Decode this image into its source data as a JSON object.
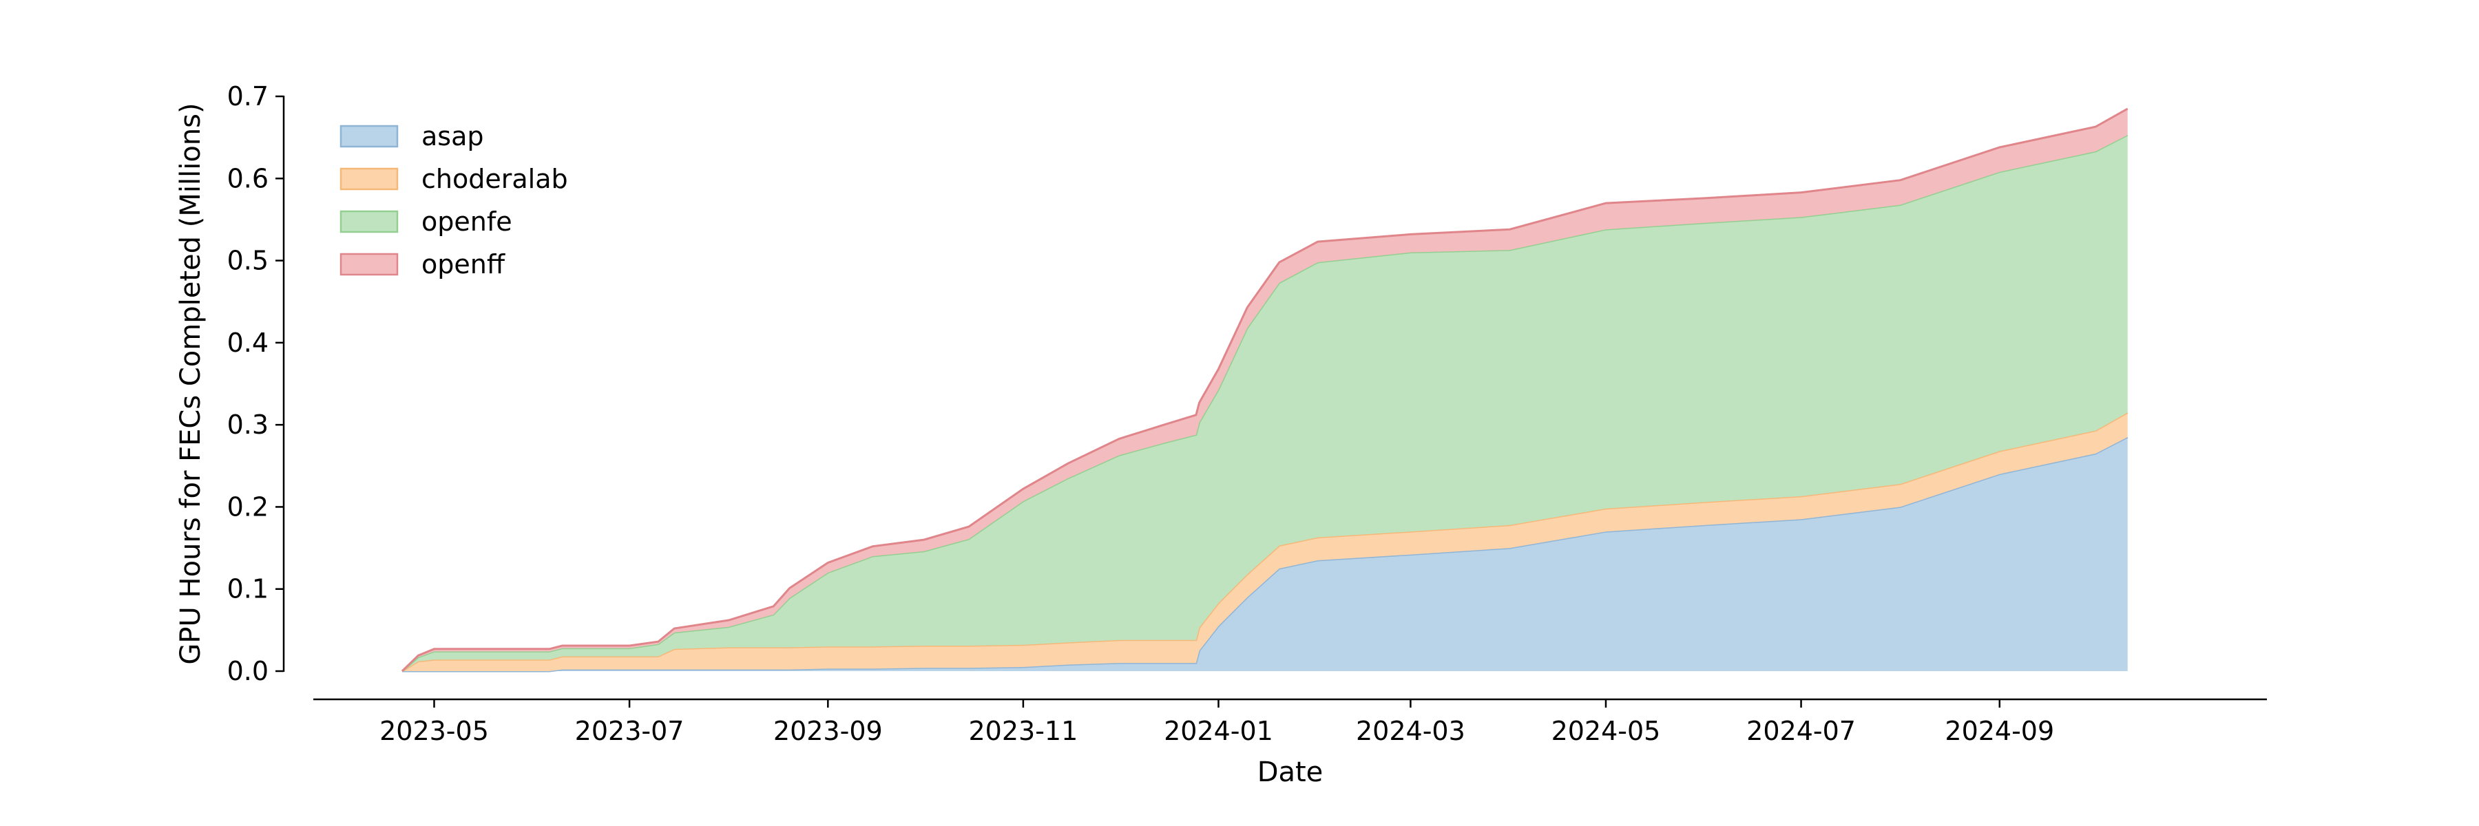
{
  "chart_data": {
    "type": "area",
    "stacked": true,
    "xlabel": "Date",
    "ylabel": "GPU Hours for FECs Completed (Millions)",
    "ylim": [
      0.0,
      0.7
    ],
    "xlim": [
      "2023-03-15",
      "2024-11-22"
    ],
    "y_ticks": [
      0.0,
      0.1,
      0.2,
      0.3,
      0.4,
      0.5,
      0.6,
      0.7
    ],
    "y_tick_labels": [
      "0.0",
      "0.1",
      "0.2",
      "0.3",
      "0.4",
      "0.5",
      "0.6",
      "0.7"
    ],
    "x_ticks": [
      "2023-05-01",
      "2023-07-01",
      "2023-09-01",
      "2023-11-01",
      "2024-01-01",
      "2024-03-01",
      "2024-05-01",
      "2024-07-01",
      "2024-09-01"
    ],
    "x_tick_labels": [
      "2023-05",
      "2023-07",
      "2023-09",
      "2023-11",
      "2024-01",
      "2024-03",
      "2024-05",
      "2024-07",
      "2024-09"
    ],
    "legend_position": "upper-left",
    "grid": false,
    "x": [
      "2023-04-21",
      "2023-04-26",
      "2023-05-01",
      "2023-06-06",
      "2023-06-10",
      "2023-07-01",
      "2023-07-10",
      "2023-07-15",
      "2023-08-01",
      "2023-08-15",
      "2023-08-20",
      "2023-09-01",
      "2023-09-15",
      "2023-10-01",
      "2023-10-15",
      "2023-11-01",
      "2023-11-15",
      "2023-12-01",
      "2023-12-15",
      "2023-12-25",
      "2023-12-26",
      "2024-01-01",
      "2024-01-10",
      "2024-01-20",
      "2024-02-01",
      "2024-03-01",
      "2024-04-01",
      "2024-05-01",
      "2024-06-01",
      "2024-07-01",
      "2024-08-01",
      "2024-09-01",
      "2024-10-01",
      "2024-10-11"
    ],
    "series": [
      {
        "name": "asap",
        "values": [
          0.0,
          0.0,
          0.0,
          0.0,
          0.002,
          0.002,
          0.002,
          0.002,
          0.002,
          0.002,
          0.002,
          0.003,
          0.003,
          0.004,
          0.004,
          0.005,
          0.008,
          0.01,
          0.01,
          0.01,
          0.025,
          0.055,
          0.09,
          0.125,
          0.135,
          0.142,
          0.15,
          0.17,
          0.178,
          0.185,
          0.2,
          0.24,
          0.265,
          0.285
        ]
      },
      {
        "name": "choderalab",
        "values": [
          0.0,
          0.012,
          0.014,
          0.014,
          0.016,
          0.016,
          0.016,
          0.025,
          0.027,
          0.027,
          0.027,
          0.027,
          0.027,
          0.027,
          0.027,
          0.027,
          0.027,
          0.028,
          0.028,
          0.028,
          0.028,
          0.028,
          0.028,
          0.028,
          0.028,
          0.028,
          0.028,
          0.028,
          0.028,
          0.028,
          0.028,
          0.028,
          0.028,
          0.03
        ]
      },
      {
        "name": "openfe",
        "values": [
          0.0,
          0.005,
          0.01,
          0.01,
          0.01,
          0.01,
          0.015,
          0.02,
          0.025,
          0.04,
          0.06,
          0.09,
          0.11,
          0.115,
          0.13,
          0.175,
          0.2,
          0.225,
          0.24,
          0.25,
          0.25,
          0.26,
          0.3,
          0.32,
          0.335,
          0.34,
          0.335,
          0.34,
          0.34,
          0.34,
          0.34,
          0.34,
          0.34,
          0.338
        ]
      },
      {
        "name": "openff",
        "values": [
          0.0,
          0.002,
          0.003,
          0.003,
          0.003,
          0.003,
          0.003,
          0.005,
          0.008,
          0.01,
          0.012,
          0.012,
          0.012,
          0.014,
          0.015,
          0.015,
          0.018,
          0.02,
          0.022,
          0.024,
          0.024,
          0.025,
          0.025,
          0.025,
          0.025,
          0.022,
          0.025,
          0.032,
          0.03,
          0.03,
          0.03,
          0.03,
          0.03,
          0.032
        ]
      }
    ],
    "colors": {
      "asap": {
        "fill": "#b9d4e8",
        "edge": "#8fb5d6"
      },
      "choderalab": {
        "fill": "#fdd3aa",
        "edge": "#f5b879"
      },
      "openfe": {
        "fill": "#c0e3bf",
        "edge": "#93cf91"
      },
      "openff": {
        "fill": "#f3bcbf",
        "edge": "#e0868b"
      }
    }
  }
}
